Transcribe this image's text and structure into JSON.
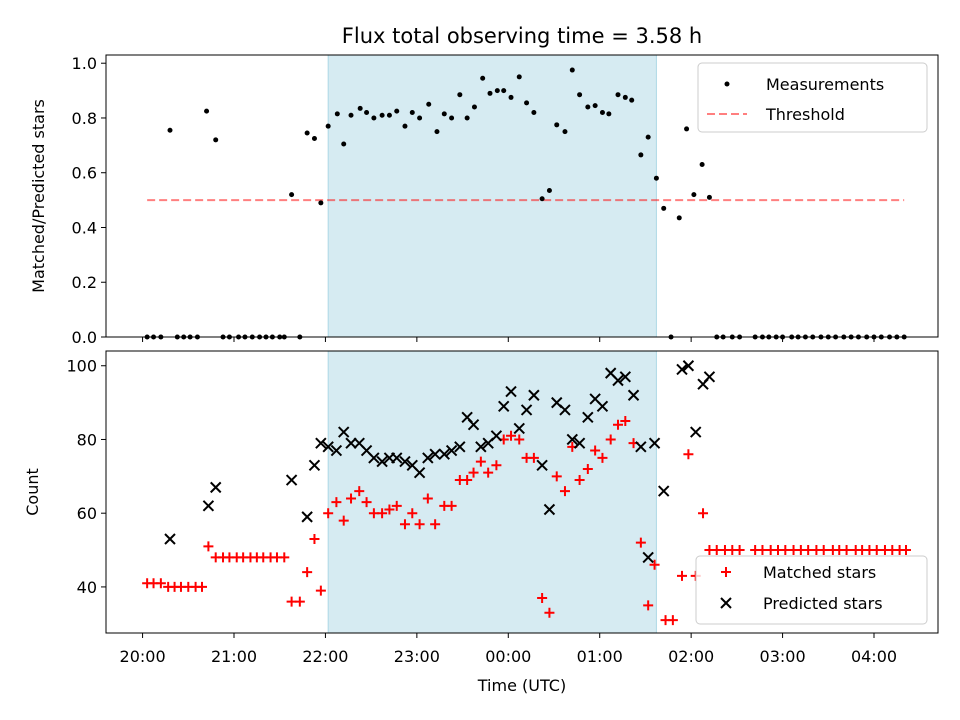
{
  "title": "Flux total observing time = 3.58 h",
  "colors": {
    "shade": "#add8e6",
    "threshold": "#ff0000",
    "matched": "#ff0000",
    "predicted": "#000000",
    "measurement": "#000000"
  },
  "chart_data": [
    {
      "type": "scatter",
      "ylabel": "Matched/Predicted stars",
      "xlim": [
        -0.4,
        8.7
      ],
      "ylim": [
        0,
        1.03
      ],
      "yticks": [
        0.0,
        0.2,
        0.4,
        0.6,
        0.8,
        1.0
      ],
      "ytick_labels": [
        "0.0",
        "0.2",
        "0.4",
        "0.6",
        "0.8",
        "1.0"
      ],
      "shaded_interval": [
        2.03,
        5.62
      ],
      "grid": false,
      "legend": {
        "placement": "top-right",
        "entries": [
          "Measurements",
          "Threshold"
        ]
      },
      "threshold": {
        "name": "Threshold",
        "y": 0.5,
        "x": [
          0.05,
          8.33
        ]
      },
      "series": [
        {
          "name": "Measurements",
          "points": [
            [
              0.05,
              0.0
            ],
            [
              0.12,
              0.0
            ],
            [
              0.2,
              0.0
            ],
            [
              0.3,
              0.755
            ],
            [
              0.38,
              0.0
            ],
            [
              0.45,
              0.0
            ],
            [
              0.52,
              0.0
            ],
            [
              0.6,
              0.0
            ],
            [
              0.7,
              0.825
            ],
            [
              0.8,
              0.72
            ],
            [
              0.88,
              0.0
            ],
            [
              0.95,
              0.0
            ],
            [
              1.05,
              0.0
            ],
            [
              1.12,
              0.0
            ],
            [
              1.2,
              0.0
            ],
            [
              1.28,
              0.0
            ],
            [
              1.35,
              0.0
            ],
            [
              1.42,
              0.0
            ],
            [
              1.5,
              0.0
            ],
            [
              1.55,
              0.0
            ],
            [
              1.63,
              0.52
            ],
            [
              1.72,
              0.0
            ],
            [
              1.8,
              0.745
            ],
            [
              1.88,
              0.725
            ],
            [
              1.95,
              0.49
            ],
            [
              2.03,
              0.77
            ],
            [
              2.13,
              0.815
            ],
            [
              2.2,
              0.705
            ],
            [
              2.28,
              0.81
            ],
            [
              2.38,
              0.835
            ],
            [
              2.45,
              0.82
            ],
            [
              2.53,
              0.8
            ],
            [
              2.62,
              0.81
            ],
            [
              2.7,
              0.81
            ],
            [
              2.78,
              0.825
            ],
            [
              2.87,
              0.77
            ],
            [
              2.95,
              0.82
            ],
            [
              3.03,
              0.8
            ],
            [
              3.13,
              0.85
            ],
            [
              3.22,
              0.75
            ],
            [
              3.3,
              0.815
            ],
            [
              3.38,
              0.8
            ],
            [
              3.47,
              0.885
            ],
            [
              3.55,
              0.8
            ],
            [
              3.63,
              0.84
            ],
            [
              3.72,
              0.945
            ],
            [
              3.8,
              0.89
            ],
            [
              3.88,
              0.9
            ],
            [
              3.95,
              0.9
            ],
            [
              4.03,
              0.875
            ],
            [
              4.12,
              0.95
            ],
            [
              4.2,
              0.855
            ],
            [
              4.28,
              0.82
            ],
            [
              4.37,
              0.505
            ],
            [
              4.45,
              0.535
            ],
            [
              4.53,
              0.775
            ],
            [
              4.62,
              0.75
            ],
            [
              4.7,
              0.975
            ],
            [
              4.78,
              0.885
            ],
            [
              4.87,
              0.84
            ],
            [
              4.95,
              0.845
            ],
            [
              5.03,
              0.82
            ],
            [
              5.1,
              0.815
            ],
            [
              5.2,
              0.885
            ],
            [
              5.28,
              0.875
            ],
            [
              5.35,
              0.865
            ],
            [
              5.45,
              0.665
            ],
            [
              5.53,
              0.73
            ],
            [
              5.62,
              0.58
            ],
            [
              5.7,
              0.47
            ],
            [
              5.78,
              0.0
            ],
            [
              5.87,
              0.435
            ],
            [
              5.95,
              0.76
            ],
            [
              6.03,
              0.52
            ],
            [
              6.12,
              0.63
            ],
            [
              6.2,
              0.51
            ],
            [
              6.28,
              0.0
            ],
            [
              6.35,
              0.0
            ],
            [
              6.45,
              0.0
            ],
            [
              6.53,
              0.0
            ],
            [
              6.7,
              0.0
            ],
            [
              6.78,
              0.0
            ],
            [
              6.85,
              0.0
            ],
            [
              6.93,
              0.0
            ],
            [
              7.0,
              0.0
            ],
            [
              7.1,
              0.0
            ],
            [
              7.17,
              0.0
            ],
            [
              7.25,
              0.0
            ],
            [
              7.33,
              0.0
            ],
            [
              7.42,
              0.0
            ],
            [
              7.5,
              0.0
            ],
            [
              7.58,
              0.0
            ],
            [
              7.67,
              0.0
            ],
            [
              7.75,
              0.0
            ],
            [
              7.83,
              0.0
            ],
            [
              7.92,
              0.0
            ],
            [
              8.0,
              0.0
            ],
            [
              8.08,
              0.0
            ],
            [
              8.17,
              0.0
            ],
            [
              8.25,
              0.0
            ],
            [
              8.33,
              0.0
            ]
          ]
        }
      ]
    },
    {
      "type": "scatter",
      "xlabel": "Time (UTC)",
      "ylabel": "Count",
      "xlim": [
        -0.4,
        8.7
      ],
      "ylim": [
        27.5,
        104
      ],
      "yticks": [
        40,
        60,
        80,
        100
      ],
      "ytick_labels": [
        "40",
        "60",
        "80",
        "100"
      ],
      "xticks": [
        0,
        1,
        2,
        3,
        4,
        5,
        6,
        7,
        8
      ],
      "xtick_labels": [
        "20:00",
        "21:00",
        "22:00",
        "23:00",
        "00:00",
        "01:00",
        "02:00",
        "03:00",
        "04:00"
      ],
      "shaded_interval": [
        2.03,
        5.62
      ],
      "grid": false,
      "legend": {
        "placement": "bottom-right",
        "entries": [
          "Matched stars",
          "Predicted stars"
        ]
      },
      "series": [
        {
          "name": "Matched stars",
          "marker": "plus",
          "points": [
            [
              0.05,
              41
            ],
            [
              0.12,
              41
            ],
            [
              0.2,
              41
            ],
            [
              0.28,
              40
            ],
            [
              0.35,
              40
            ],
            [
              0.42,
              40
            ],
            [
              0.5,
              40
            ],
            [
              0.58,
              40
            ],
            [
              0.65,
              40
            ],
            [
              0.72,
              51
            ],
            [
              0.8,
              48
            ],
            [
              0.88,
              48
            ],
            [
              0.95,
              48
            ],
            [
              1.03,
              48
            ],
            [
              1.1,
              48
            ],
            [
              1.18,
              48
            ],
            [
              1.25,
              48
            ],
            [
              1.32,
              48
            ],
            [
              1.4,
              48
            ],
            [
              1.47,
              48
            ],
            [
              1.55,
              48
            ],
            [
              1.63,
              36
            ],
            [
              1.72,
              36
            ],
            [
              1.8,
              44
            ],
            [
              1.88,
              53
            ],
            [
              1.95,
              39
            ],
            [
              2.03,
              60
            ],
            [
              2.12,
              63
            ],
            [
              2.2,
              58
            ],
            [
              2.28,
              64
            ],
            [
              2.37,
              66
            ],
            [
              2.45,
              63
            ],
            [
              2.53,
              60
            ],
            [
              2.62,
              60
            ],
            [
              2.7,
              61
            ],
            [
              2.78,
              62
            ],
            [
              2.87,
              57
            ],
            [
              2.95,
              60
            ],
            [
              3.03,
              57
            ],
            [
              3.12,
              64
            ],
            [
              3.2,
              57
            ],
            [
              3.3,
              62
            ],
            [
              3.38,
              62
            ],
            [
              3.47,
              69
            ],
            [
              3.55,
              69
            ],
            [
              3.62,
              71
            ],
            [
              3.7,
              74
            ],
            [
              3.78,
              71
            ],
            [
              3.87,
              73
            ],
            [
              3.95,
              80
            ],
            [
              4.03,
              81
            ],
            [
              4.12,
              80
            ],
            [
              4.2,
              75
            ],
            [
              4.28,
              75
            ],
            [
              4.37,
              37
            ],
            [
              4.45,
              33
            ],
            [
              4.53,
              70
            ],
            [
              4.62,
              66
            ],
            [
              4.7,
              78
            ],
            [
              4.78,
              69
            ],
            [
              4.87,
              72
            ],
            [
              4.95,
              77
            ],
            [
              5.03,
              75
            ],
            [
              5.12,
              80
            ],
            [
              5.2,
              84
            ],
            [
              5.28,
              85
            ],
            [
              5.37,
              79
            ],
            [
              5.45,
              52
            ],
            [
              5.53,
              35
            ],
            [
              5.6,
              46
            ],
            [
              5.72,
              31
            ],
            [
              5.8,
              31
            ],
            [
              5.9,
              43
            ],
            [
              5.97,
              76
            ],
            [
              6.05,
              43
            ],
            [
              6.13,
              60
            ],
            [
              6.2,
              50
            ],
            [
              6.28,
              50
            ],
            [
              6.37,
              50
            ],
            [
              6.45,
              50
            ],
            [
              6.53,
              50
            ],
            [
              6.7,
              50
            ],
            [
              6.78,
              50
            ],
            [
              6.87,
              50
            ],
            [
              6.95,
              50
            ],
            [
              7.03,
              50
            ],
            [
              7.12,
              50
            ],
            [
              7.2,
              50
            ],
            [
              7.28,
              50
            ],
            [
              7.37,
              50
            ],
            [
              7.45,
              50
            ],
            [
              7.55,
              50
            ],
            [
              7.62,
              50
            ],
            [
              7.7,
              50
            ],
            [
              7.8,
              50
            ],
            [
              7.87,
              50
            ],
            [
              7.95,
              50
            ],
            [
              8.03,
              50
            ],
            [
              8.12,
              50
            ],
            [
              8.2,
              50
            ],
            [
              8.28,
              50
            ],
            [
              8.35,
              50
            ]
          ]
        },
        {
          "name": "Predicted stars",
          "marker": "x",
          "points": [
            [
              0.3,
              53
            ],
            [
              0.72,
              62
            ],
            [
              0.8,
              67
            ],
            [
              1.63,
              69
            ],
            [
              1.8,
              59
            ],
            [
              1.88,
              73
            ],
            [
              1.95,
              79
            ],
            [
              2.03,
              78
            ],
            [
              2.12,
              77
            ],
            [
              2.2,
              82
            ],
            [
              2.28,
              79
            ],
            [
              2.37,
              79
            ],
            [
              2.45,
              77
            ],
            [
              2.53,
              75
            ],
            [
              2.62,
              74
            ],
            [
              2.7,
              75
            ],
            [
              2.78,
              75
            ],
            [
              2.87,
              74
            ],
            [
              2.95,
              73
            ],
            [
              3.03,
              71
            ],
            [
              3.12,
              75
            ],
            [
              3.2,
              76
            ],
            [
              3.3,
              76
            ],
            [
              3.38,
              77
            ],
            [
              3.47,
              78
            ],
            [
              3.55,
              86
            ],
            [
              3.62,
              84
            ],
            [
              3.7,
              78
            ],
            [
              3.78,
              79
            ],
            [
              3.87,
              81
            ],
            [
              3.95,
              89
            ],
            [
              4.03,
              93
            ],
            [
              4.12,
              83
            ],
            [
              4.2,
              88
            ],
            [
              4.28,
              92
            ],
            [
              4.37,
              73
            ],
            [
              4.45,
              61
            ],
            [
              4.53,
              90
            ],
            [
              4.62,
              88
            ],
            [
              4.7,
              80
            ],
            [
              4.78,
              79
            ],
            [
              4.87,
              86
            ],
            [
              4.95,
              91
            ],
            [
              5.03,
              89
            ],
            [
              5.12,
              98
            ],
            [
              5.2,
              96
            ],
            [
              5.28,
              97
            ],
            [
              5.37,
              92
            ],
            [
              5.45,
              78
            ],
            [
              5.53,
              48
            ],
            [
              5.6,
              79
            ],
            [
              5.7,
              66
            ],
            [
              5.9,
              99
            ],
            [
              5.97,
              100
            ],
            [
              6.05,
              82
            ],
            [
              6.13,
              95
            ],
            [
              6.2,
              97
            ]
          ]
        }
      ]
    }
  ]
}
